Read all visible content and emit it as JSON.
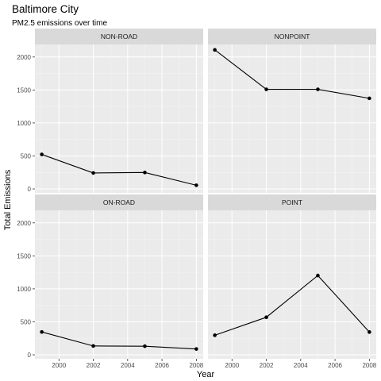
{
  "colors": {
    "panel_background": "#ebebeb",
    "strip_background": "#d9d9d9",
    "grid_major": "#ffffff",
    "grid_minor": "#f4f4f4",
    "line": "#000000",
    "point": "#000000"
  },
  "chart_data": {
    "type": "line",
    "title": "Baltimore City",
    "subtitle": "PM2.5 emissions over time",
    "xlabel": "Year",
    "ylabel": "Total Emissions",
    "xlim": [
      1998.6,
      2008.4
    ],
    "ylim": [
      -60,
      2190
    ],
    "x_ticks": [
      2000,
      2002,
      2004,
      2006,
      2008
    ],
    "x_tick_labels": [
      "2000",
      "2002",
      "2004",
      "2006",
      "2008"
    ],
    "y_ticks": [
      0,
      500,
      1000,
      1500,
      2000
    ],
    "y_tick_labels": [
      "0",
      "500",
      "1000",
      "1500",
      "2000"
    ],
    "grid": true,
    "legend": "none",
    "x": [
      1999,
      2002,
      2005,
      2008
    ],
    "series": [
      {
        "name": "NON-ROAD",
        "values": [
          522.9,
          241.8,
          248.9,
          55.8
        ]
      },
      {
        "name": "NONPOINT",
        "values": [
          2107.6,
          1509.5,
          1509.5,
          1373.2
        ]
      },
      {
        "name": "ON-ROAD",
        "values": [
          346.8,
          134.3,
          130.4,
          88.3
        ]
      },
      {
        "name": "POINT",
        "values": [
          296.8,
          569.3,
          1202.5,
          344.98
        ]
      }
    ]
  }
}
